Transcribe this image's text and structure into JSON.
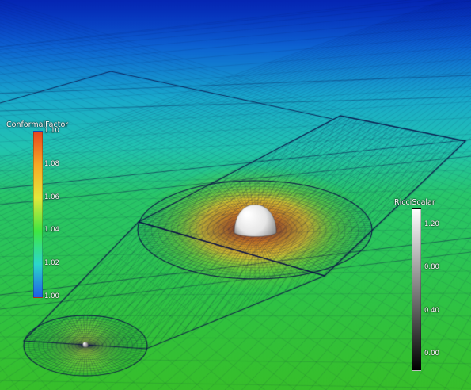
{
  "scene": {
    "description_colors": {
      "far_plane": "#0b3fd1",
      "mid_plane": "#1fb9c6",
      "near_plane": "#28c65a",
      "hot_center": "#d9681e",
      "mesh_line": "#0a0f4a",
      "body": "#f2f2f2"
    }
  },
  "colorbars": {
    "conformal": {
      "title": "ConformalFactor",
      "ticks": [
        "1.10",
        "1.08",
        "1.06",
        "1.04",
        "1.02",
        "1.00"
      ],
      "tick_values": [
        1.1,
        1.08,
        1.06,
        1.04,
        1.02,
        1.0
      ],
      "range": [
        1.0,
        1.1
      ],
      "gradient": [
        "#e8451e",
        "#f7a824",
        "#e3e83b",
        "#3ee641",
        "#2bd8c9",
        "#1f5ee8"
      ]
    },
    "ricci": {
      "title": "RicciScalar",
      "ticks": [
        "1.20",
        "0.80",
        "0.40",
        "0.00"
      ],
      "tick_values": [
        1.2,
        0.8,
        0.4,
        0.0
      ],
      "range": [
        -0.15,
        1.35
      ],
      "gradient": [
        "#ffffff",
        "#000000"
      ]
    }
  }
}
